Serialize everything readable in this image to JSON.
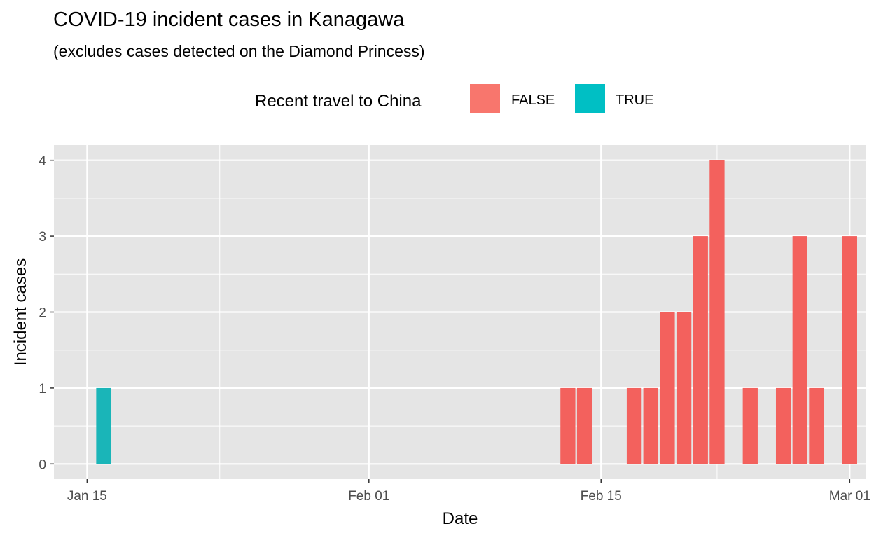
{
  "chart_data": {
    "type": "bar",
    "title": "COVID-19 incident cases in Kanagawa",
    "subtitle": "(excludes cases detected on the Diamond Princess)",
    "xlabel": "Date",
    "ylabel": "Incident cases",
    "x_tick_labels": [
      "Jan 15",
      "Feb 01",
      "Feb 15",
      "Mar 01"
    ],
    "x_tick_dates": [
      "2020-01-15",
      "2020-02-01",
      "2020-02-15",
      "2020-03-01"
    ],
    "x_minor_gridlines": [
      "2020-01-23",
      "2020-02-08",
      "2020-02-22"
    ],
    "xlim": [
      "2020-01-13",
      "2020-03-02"
    ],
    "ylim": [
      -0.2,
      4.2
    ],
    "y_ticks": [
      0,
      1,
      2,
      3,
      4
    ],
    "grid": true,
    "legend": {
      "title": "Recent travel to China",
      "position": "top",
      "entries": [
        {
          "label": "FALSE",
          "color": "#F8766D"
        },
        {
          "label": "TRUE",
          "color": "#00BFC4"
        }
      ]
    },
    "series": [
      {
        "name": "TRUE",
        "color": "#1AB5B8",
        "points": [
          {
            "date": "2020-01-16",
            "value": 1
          }
        ]
      },
      {
        "name": "FALSE",
        "color": "#F3615D",
        "points": [
          {
            "date": "2020-02-13",
            "value": 1
          },
          {
            "date": "2020-02-14",
            "value": 1
          },
          {
            "date": "2020-02-17",
            "value": 1
          },
          {
            "date": "2020-02-18",
            "value": 1
          },
          {
            "date": "2020-02-19",
            "value": 2
          },
          {
            "date": "2020-02-20",
            "value": 2
          },
          {
            "date": "2020-02-21",
            "value": 3
          },
          {
            "date": "2020-02-22",
            "value": 4
          },
          {
            "date": "2020-02-24",
            "value": 1
          },
          {
            "date": "2020-02-26",
            "value": 1
          },
          {
            "date": "2020-02-27",
            "value": 3
          },
          {
            "date": "2020-02-28",
            "value": 1
          },
          {
            "date": "2020-03-01",
            "value": 3
          }
        ]
      }
    ]
  },
  "colors": {
    "panel_background": "#E5E5E5",
    "grid": "#FFFFFF",
    "axis_text": "#4D4D4D",
    "tick": "#333333"
  }
}
